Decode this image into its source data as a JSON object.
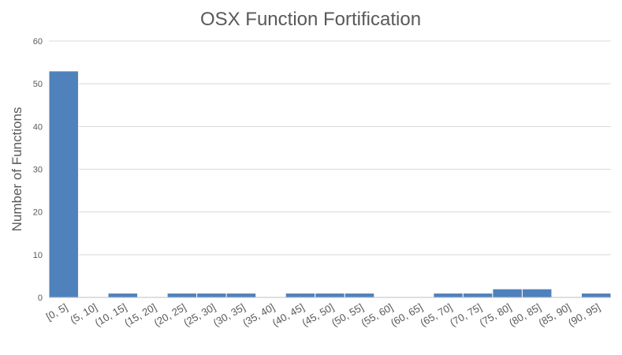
{
  "chart_data": {
    "type": "bar",
    "title": "OSX Function Fortification",
    "xlabel": "",
    "ylabel": "Number of Functions",
    "ylim": [
      0,
      60
    ],
    "yticks": [
      0,
      10,
      20,
      30,
      40,
      50,
      60
    ],
    "grid": true,
    "legend": "none",
    "categories": [
      "[0, 5]",
      "(5, 10]",
      "(10, 15]",
      "(15, 20]",
      "(20, 25]",
      "(25, 30]",
      "(30, 35]",
      "(35, 40]",
      "(40, 45]",
      "(45, 50]",
      "(50, 55]",
      "(55, 60]",
      "(60, 65]",
      "(65, 70]",
      "(70, 75]",
      "(75, 80]",
      "(80, 85]",
      "(85, 90]",
      "(90, 95]"
    ],
    "values": [
      53,
      0,
      1,
      0,
      1,
      1,
      1,
      0,
      1,
      1,
      1,
      0,
      0,
      1,
      1,
      2,
      2,
      0,
      1
    ],
    "colors": {
      "bar": "#4f81bd",
      "bar_edge": "#ffffff",
      "grid": "#d9d9d9",
      "axis": "#bfbfbf",
      "text": "#595959",
      "title": "#595959"
    }
  }
}
